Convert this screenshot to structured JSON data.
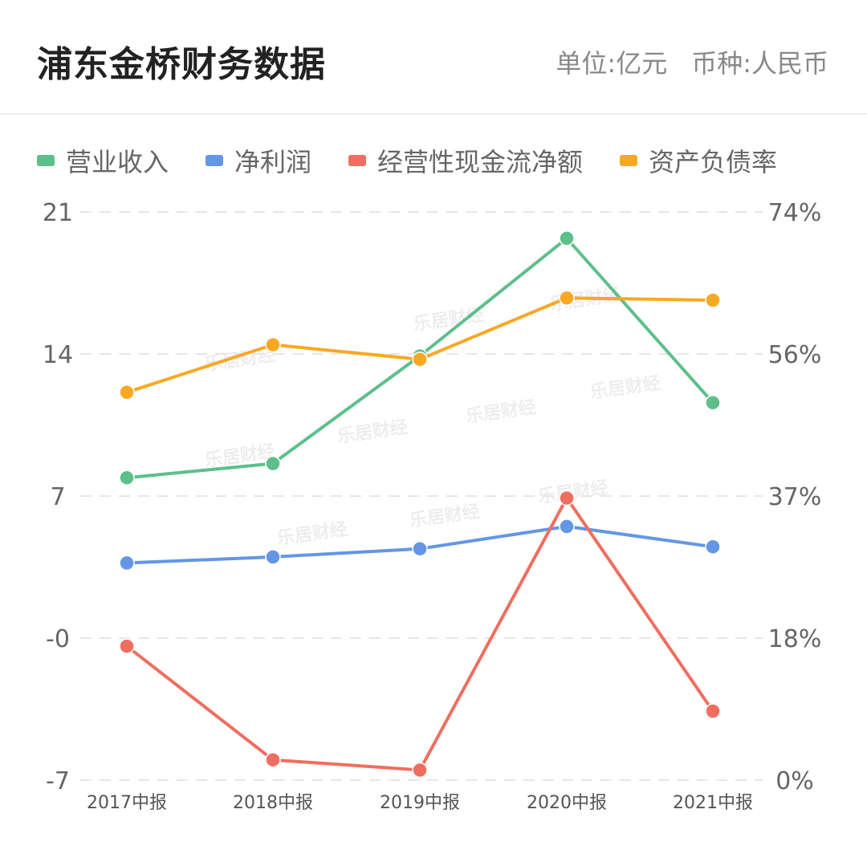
{
  "header": {
    "title": "浦东金桥财务数据",
    "unit": "单位:亿元",
    "currency": "币种:人民币"
  },
  "watermark": "乐居财经",
  "chart_data": {
    "type": "line",
    "categories": [
      "2017中报",
      "2018中报",
      "2019中报",
      "2020中报",
      "2021中报"
    ],
    "y_left": {
      "ticks": [
        "21",
        "14",
        "7",
        "-0",
        "-7"
      ],
      "min": -7,
      "max": 21
    },
    "y_right": {
      "ticks": [
        "74%",
        "56%",
        "37%",
        "18%",
        "0%"
      ],
      "min": 0,
      "max": 74
    },
    "grid": "dashed horizontal",
    "legend_position": "top-left",
    "series": [
      {
        "name": "营业收入",
        "axis": "left",
        "color": "#5dbf8a",
        "values": [
          7.9,
          8.6,
          13.9,
          19.7,
          11.6
        ]
      },
      {
        "name": "净利润",
        "axis": "left",
        "color": "#6496e6",
        "values": [
          3.7,
          4.0,
          4.4,
          5.5,
          4.5
        ]
      },
      {
        "name": "经营性现金流净额",
        "axis": "left",
        "color": "#ef6e5f",
        "values": [
          -0.4,
          -6.0,
          -6.5,
          6.9,
          -3.6
        ]
      },
      {
        "name": "资产负债率",
        "axis": "right",
        "color": "#f9a825",
        "values": [
          50.5,
          56.7,
          54.8,
          62.8,
          62.5
        ]
      }
    ]
  }
}
